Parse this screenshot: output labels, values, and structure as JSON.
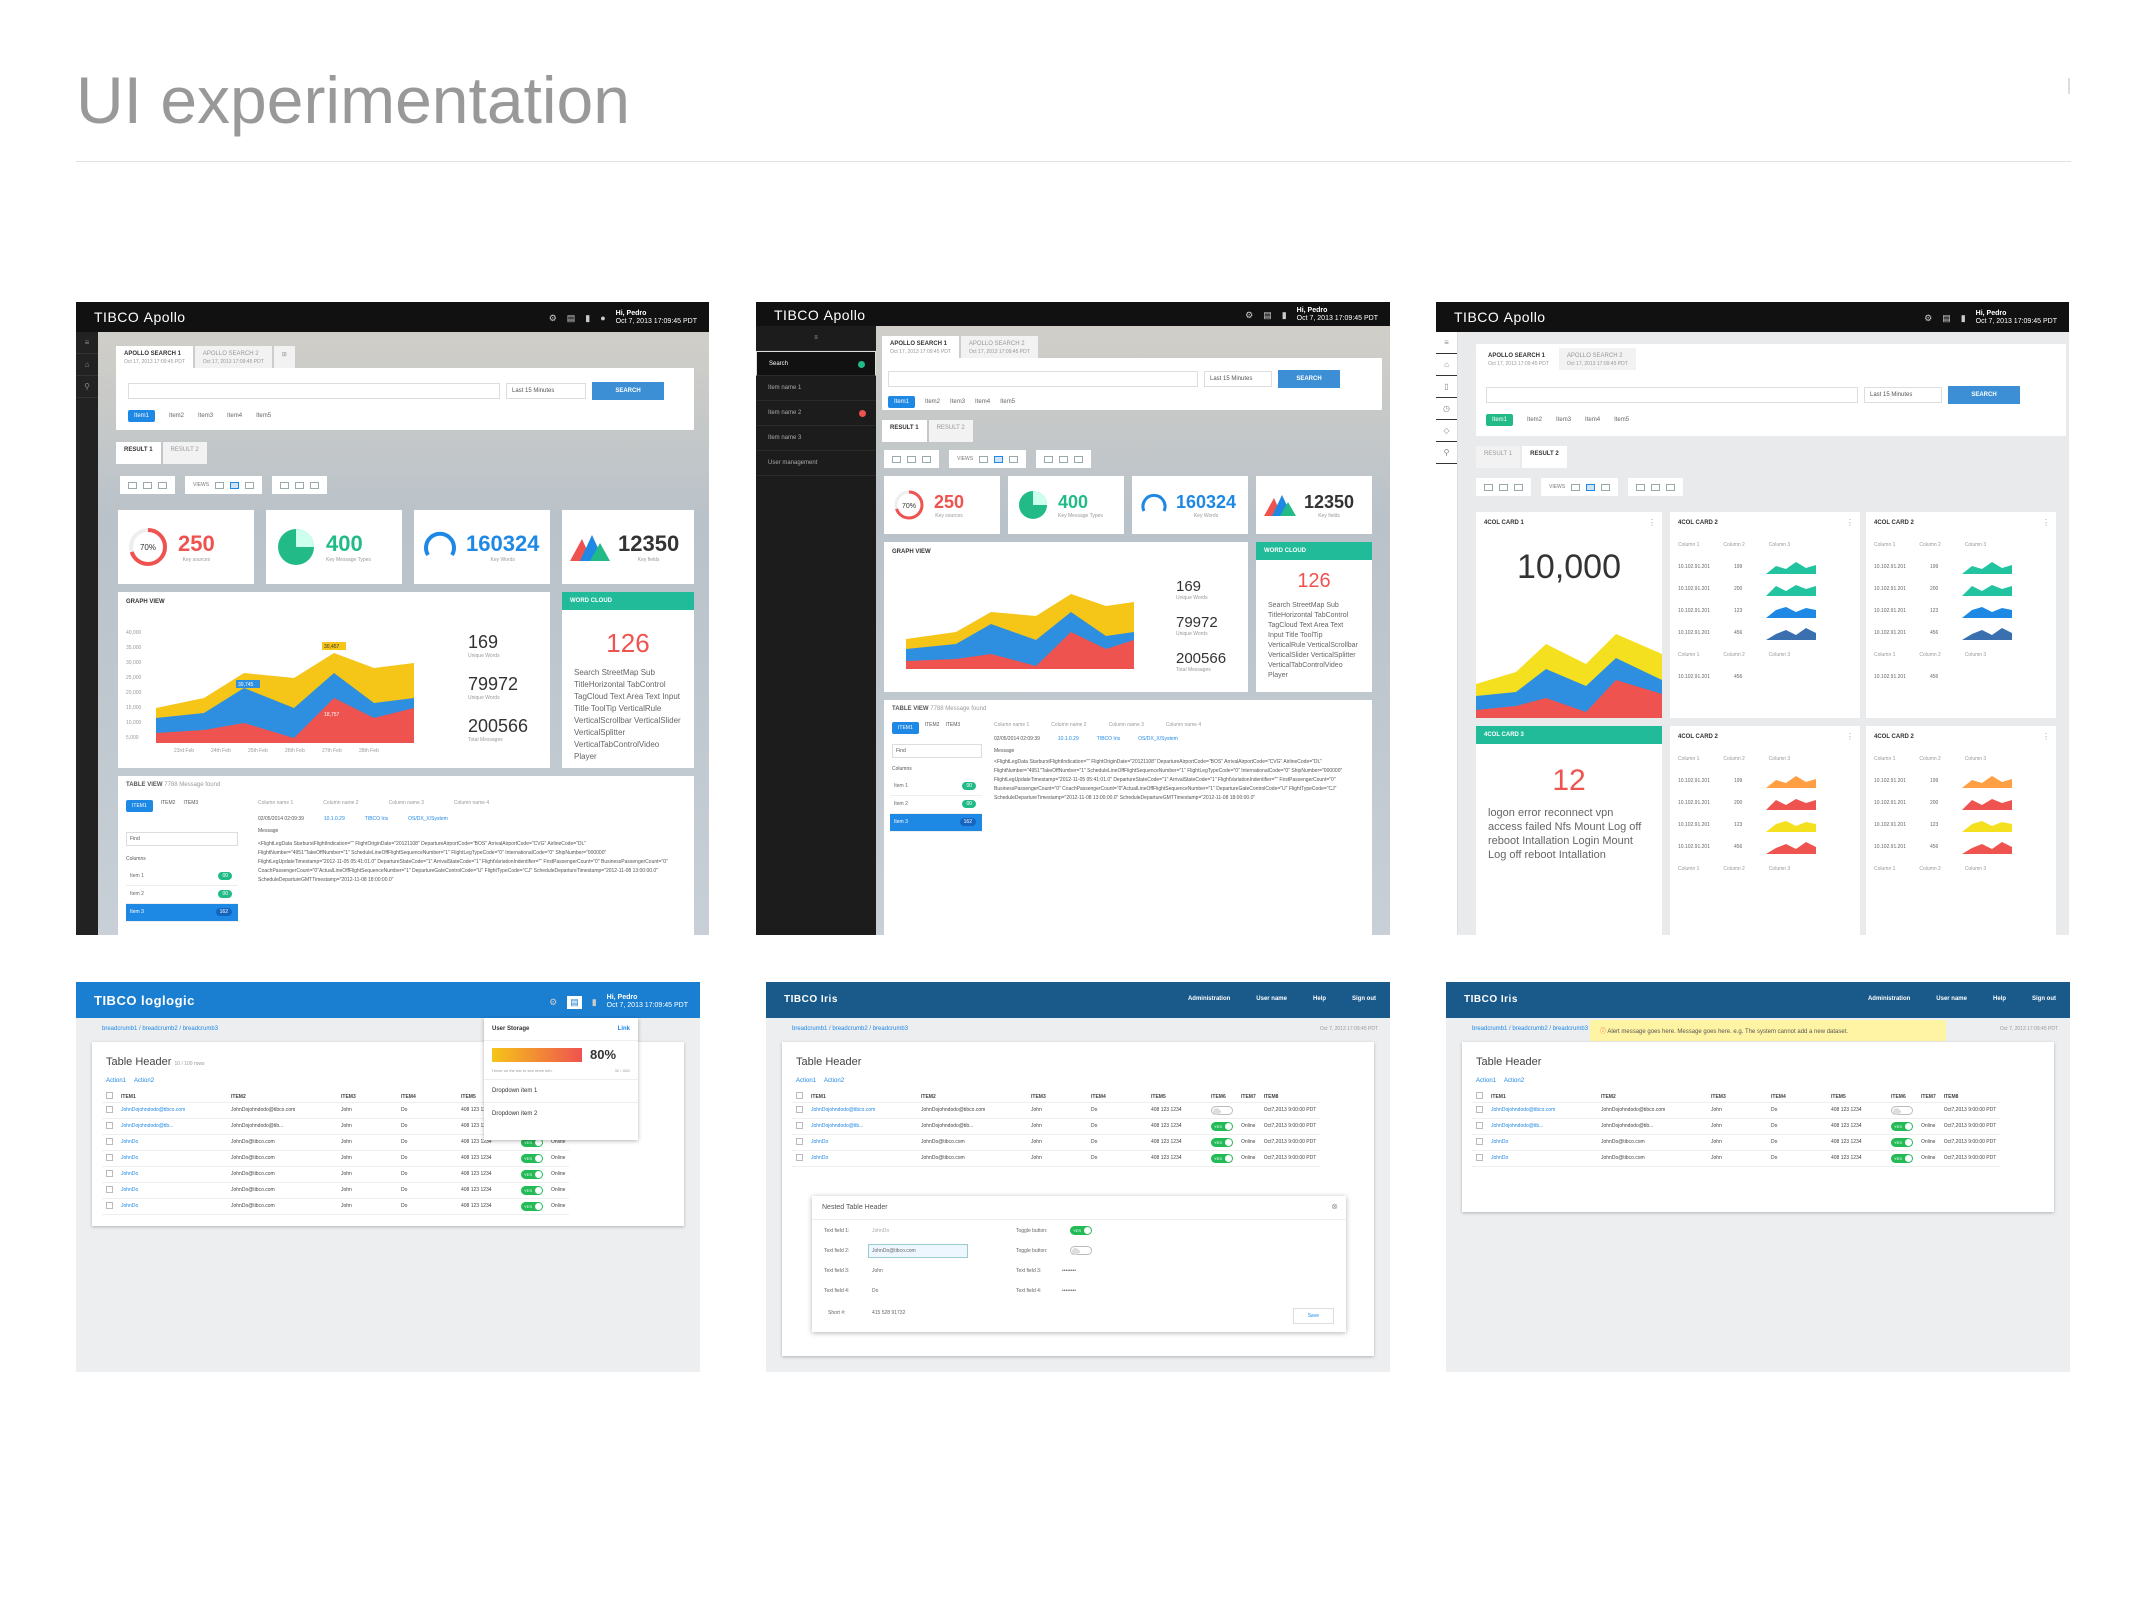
{
  "page": {
    "title": "UI experimentation"
  },
  "apollo": {
    "brand_main": "TIBCO",
    "brand_sub": "Apollo",
    "greeting": "Hi, Pedro",
    "timestamp": "Oct 7, 2013 17:09:45 PDT",
    "tab1": "APOLLO SEARCH 1",
    "tab2": "APOLLO SEARCH 2",
    "tab_date": "Oct 17, 2013 17:09:45 PDT",
    "range": "Last 15 Minutes",
    "search_btn": "SEARCH",
    "items": [
      "Item1",
      "Item2",
      "Item3",
      "Item4",
      "Item5"
    ],
    "result1": "RESULT 1",
    "result2": "RESULT 2",
    "views": "VIEWS",
    "kpi": [
      {
        "value": "250",
        "label": "Key sources",
        "ring": "70%"
      },
      {
        "value": "400",
        "label": "Key Message Types"
      },
      {
        "value": "160324",
        "label": "Key Words"
      },
      {
        "value": "12350",
        "label": "Key fields"
      }
    ],
    "graph_view": "GRAPH VIEW",
    "stats": [
      {
        "value": "169",
        "label": "Unique Words"
      },
      {
        "value": "79972",
        "label": "Unique Words"
      },
      {
        "value": "200566",
        "label": "Total Messages"
      }
    ],
    "word_cloud": "WORD CLOUD",
    "wc_count": "126",
    "wc_text": "Search StreetMap Sub TitleHorizontal TabControl TagCloud Text Area Text Input Title ToolTip VerticalRule VerticalScrollbar VerticalSlider VerticalSplitter VerticalTabControlVideo Player",
    "table_view": "TABLE VIEW",
    "found": "7788 Message found",
    "tv_items": [
      "ITEM1",
      "ITEM2",
      "ITEM3"
    ],
    "columns_hdr": [
      "Column name 1",
      "Column name 2",
      "Column name 3",
      "Column name 4"
    ],
    "find": "Find",
    "columns": "Columns",
    "col_items": [
      {
        "name": "Item 1",
        "n": "00"
      },
      {
        "name": "Item 2",
        "n": "00"
      },
      {
        "name": "Item 3",
        "n": "162"
      }
    ],
    "log_date": "02/05/2014 02:09:39",
    "log_ip": "10.1.0.29",
    "log_src": "TIBCO Iris",
    "log_sys": "OS/DX_X/System",
    "message": "Message",
    "log_body": "<FlightLegData StarburstFlightIndication=\"\" FlightOriginDate=\"20121108\" DepartureAirportCode=\"BOS\" ArrivalAirportCode=\"CVG\" AirlineCode=\"DL\" FlightNumber=\"4951\"TakeOffNumber=\"1\" ScheduleLineOffFlightSequenceNumber=\"1\" FlightLegTypeCode=\"0\" InternationalCode=\"0\" ShipNumber=\"000000\" FlightLegUpdateTimestamp=\"2012-11-05 05:41:01.0\" DepartureStateCode=\"1\" ArrivalStateCode=\"1\" FlightVariationIndentifier=\"\" FirstPassengerCount=\"0\" BusinessPassengerCount=\"0\" CoachPassengerCount=\"0\"ActualLineOffFlightSequenceNumber=\"1\" DepartureGateControlCode=\"U\" FlightTypeCode=\"CJ\" ScheduleDepartureTimestamp=\"2012-11-08 13:00:00.0\" ScheduleDepartureGMTTimestamp=\"2012-11-08 18:00:00.0\"",
    "nav": [
      "Search",
      "Item name 1",
      "Item name 2",
      "Item name 3",
      "User management"
    ],
    "big_value": "10,000",
    "card_titles": [
      "4COL CARD 1",
      "4COL CARD 2",
      "4COL CARD 2",
      "4COL CARD 3",
      "4COL CARD 2",
      "4COL CARD 2"
    ],
    "card3_value": "12",
    "card3_text": "logon error reconnect vpn access failed Nfs Mount Log off reboot Intallation Login Mount Log off reboot Intallation",
    "mini_cols": [
      "Column 1",
      "Column 2",
      "Column 3"
    ],
    "mini_rows": [
      {
        "ip": "10.102.91.201",
        "v": "199"
      },
      {
        "ip": "10.102.91.201",
        "v": "200"
      },
      {
        "ip": "10.102.91.201",
        "v": "123"
      },
      {
        "ip": "10.102.91.201",
        "v": "456"
      }
    ],
    "chart_labels": [
      "23rd Feb",
      "24th Feb",
      "25th Feb",
      "26th Feb",
      "27th Feb",
      "28th Feb"
    ],
    "y_ticks": [
      "40,000",
      "35,000",
      "30,000",
      "25,000",
      "20,000",
      "15,000",
      "10,000",
      "5,000"
    ],
    "callouts": [
      "30,457",
      "30,745",
      "18,757"
    ]
  },
  "grid": {
    "logo_loglogic": "TIBCO loglogic",
    "logo_iris": "TIBCO Iris",
    "greeting": "Hi, Pedro",
    "timestamp": "Oct 7, 2013 17:09:45 PDT",
    "breadcrumb": "breadcrumb1 / breadcrumb2 / breadcrumb3",
    "table_header": "Table Header",
    "rows_note": "10 / 100 rows",
    "action1": "Action1",
    "action2": "Action2",
    "cols": [
      "ITEM1",
      "ITEM2",
      "ITEM3",
      "ITEM4",
      "ITEM5",
      "ITEM6",
      "ITEM7",
      "ITEM8"
    ],
    "rows": [
      {
        "a": "JohnDojohndodo@tibco.com",
        "b": "JohnDojohndodo@tibco.com",
        "c": "John",
        "d": "Do",
        "e": "408 123 1234",
        "t": false,
        "s": "",
        "ts": "Oct7,2013 9:00:00 PDT"
      },
      {
        "a": "JohnDojohndodo@tib...",
        "b": "JohnDojohndodo@tib...",
        "c": "John",
        "d": "Do",
        "e": "408 123 1234",
        "t": true,
        "s": "Online",
        "ts": "Oct7,2013 9:00:00 PDT"
      },
      {
        "a": "JohnDo",
        "b": "JohnDo@tibco.com",
        "c": "John",
        "d": "Do",
        "e": "408 123 1234",
        "t": true,
        "s": "Online",
        "ts": "Oct7,2013 9:00:00 PDT"
      },
      {
        "a": "JohnDo",
        "b": "JohnDo@tibco.com",
        "c": "John",
        "d": "Do",
        "e": "408 123 1234",
        "t": true,
        "s": "Online",
        "ts": "Oct7,2013 9:00:00 PDT"
      },
      {
        "a": "JohnDo",
        "b": "JohnDo@tibco.com",
        "c": "John",
        "d": "Do",
        "e": "408 123 1234",
        "t": true,
        "s": "Online",
        "ts": ""
      },
      {
        "a": "JohnDo",
        "b": "JohnDo@tibco.com",
        "c": "John",
        "d": "Do",
        "e": "408 123 1234",
        "t": true,
        "s": "Online",
        "ts": ""
      },
      {
        "a": "JohnDo",
        "b": "JohnDo@tibco.com",
        "c": "John",
        "d": "Do",
        "e": "408 123 1234",
        "t": true,
        "s": "Online",
        "ts": ""
      }
    ],
    "no": "NO",
    "yes": "YES",
    "user_storage": "User Storage",
    "link": "Link",
    "storage_pct": "80%",
    "storage_note": "Hover on the bar to see more info.",
    "storage_size": "32 / 40G",
    "dropdown1": "Dropdown item 1",
    "dropdown2": "Dropdown item 2",
    "nav": [
      "Administration",
      "User name",
      "Help",
      "Sign out"
    ],
    "nested_header": "Nested Table Header",
    "tf1": "Text field 1:",
    "tf1_val": "JohnDo",
    "tf2": "Text field 2:",
    "tf2_val": "JohnDo@tibco.com",
    "tf3": "Text field 3:",
    "tf3_val": "John",
    "tf4": "Text field 4:",
    "tf4_val": "Do",
    "toggle_btn": "Toggle button:",
    "toggle_btn2": "Toggle button:",
    "tf3r": "Text field 3:",
    "tf4r": "Text field 4:",
    "mask": "••••••••",
    "short": "Short #:",
    "short_val": "415 528 91732",
    "save": "Save",
    "alert": "Alert message goes here. Message goes here. e.g. The system cannot add a new dataset."
  }
}
